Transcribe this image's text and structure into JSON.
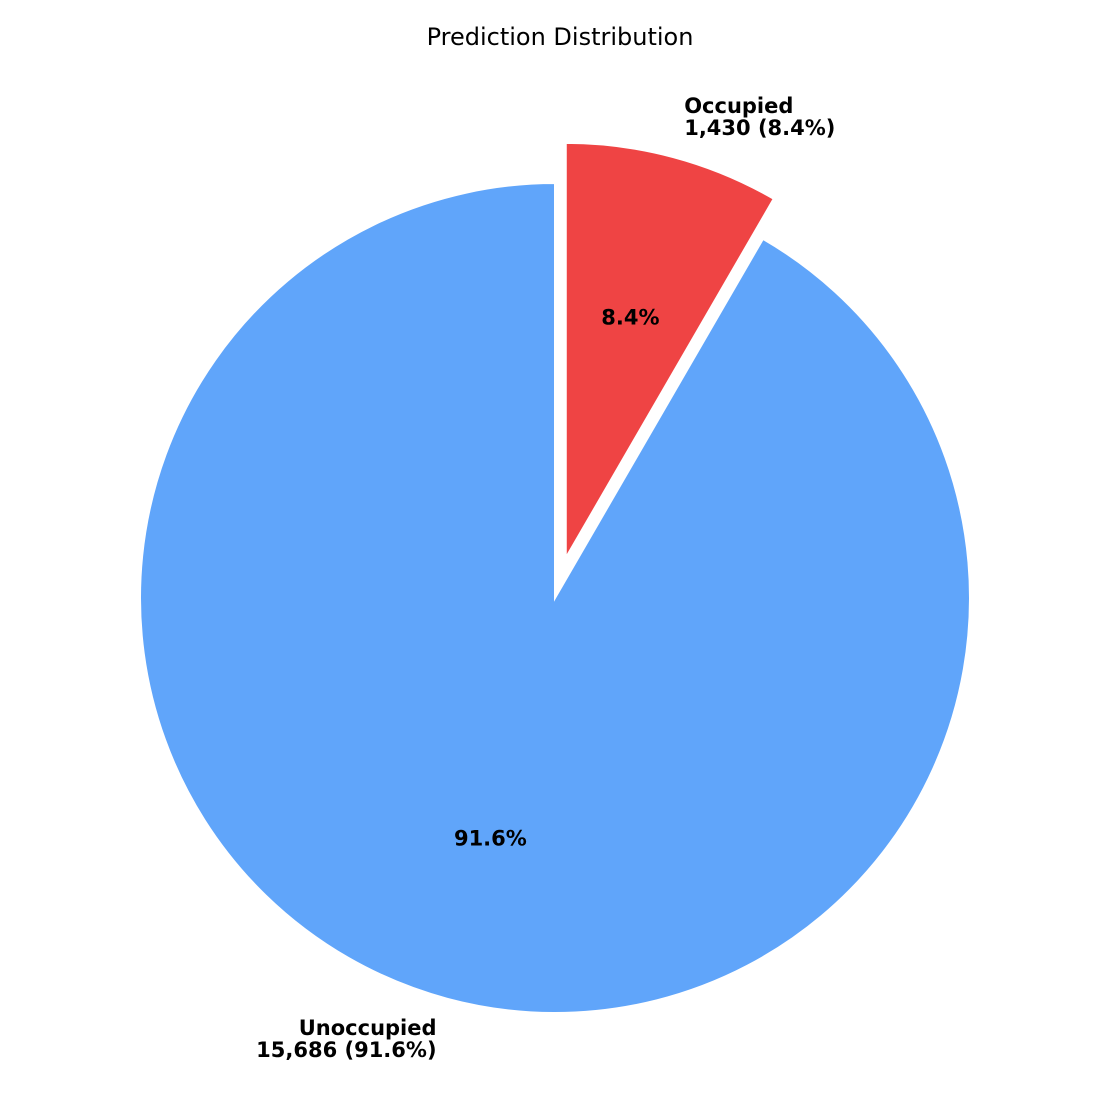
{
  "chart_data": {
    "type": "pie",
    "title": "Prediction Distribution",
    "slices": [
      {
        "label": "Occupied",
        "value": 1430,
        "value_text": "1,430 (8.4%)",
        "percent": 8.4,
        "percent_text": "8.4%",
        "color": "#ef4444",
        "exploded": true
      },
      {
        "label": "Unoccupied",
        "value": 15686,
        "value_text": "15,686 (91.6%)",
        "percent": 91.6,
        "percent_text": "91.6%",
        "color": "#60a5fa",
        "exploded": false
      }
    ],
    "start_angle_deg": 90,
    "direction": "clockwise",
    "legend": "none"
  }
}
